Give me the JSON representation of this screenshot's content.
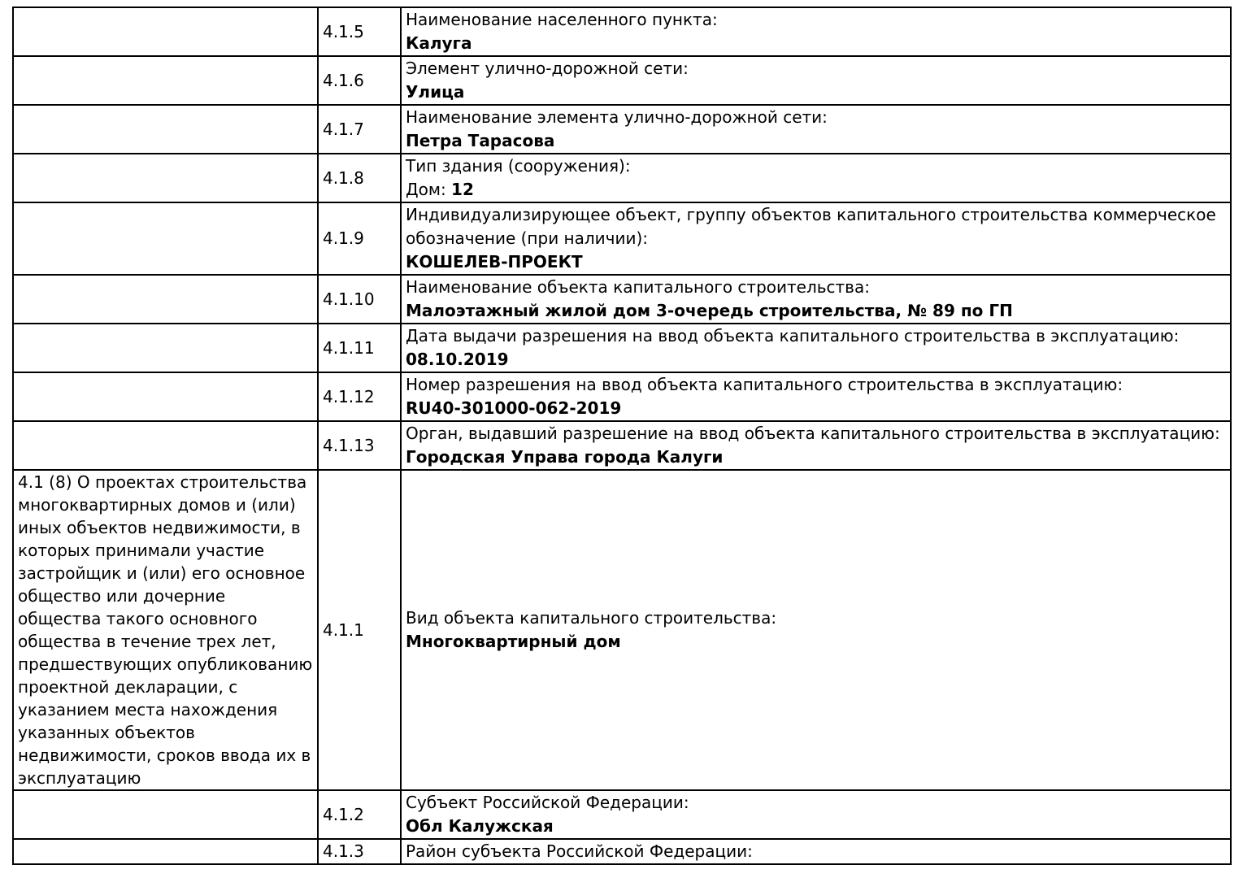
{
  "document": {
    "colors": {
      "text": "#000000",
      "border": "#000000",
      "page_background": "#ffffff"
    },
    "rows": [
      {
        "num": "4.1.5",
        "label": "Наименование населенного пункта:",
        "value": "Калуга"
      },
      {
        "num": "4.1.6",
        "label": "Элемент улично-дорожной сети:",
        "value": "Улица"
      },
      {
        "num": "4.1.7",
        "label": "Наименование элемента улично-дорожной сети:",
        "value": "Петра Тарасова"
      },
      {
        "num": "4.1.8",
        "label": "Тип здания (сооружения):",
        "value_prefix": "Дом: ",
        "value": "12"
      },
      {
        "num": "4.1.9",
        "label": "Индивидуализирующее объект, группу объектов капитального строительства коммерческое обозначение (при наличии):",
        "value": "КОШЕЛЕВ-ПРОЕКТ"
      },
      {
        "num": "4.1.10",
        "label": "Наименование объекта капитального строительства:",
        "value": "Малоэтажный жилой дом 3-очередь строительства, № 89 по ГП"
      },
      {
        "num": "4.1.11",
        "label": "Дата выдачи разрешения на ввод объекта капитального строительства в эксплуатацию:",
        "value": "08.10.2019"
      },
      {
        "num": "4.1.12",
        "label": "Номер разрешения на ввод объекта капитального строительства в эксплуатацию:",
        "value": "RU40-301000-062-2019"
      },
      {
        "num": "4.1.13",
        "label": "Орган, выдавший разрешение на ввод объекта капитального строительства в эксплуатацию:",
        "value": "Городская Управа города Калуги"
      },
      {
        "num": "4.1.1",
        "section": "4.1 (8) О проектах строительства многоквартирных домов и (или) иных объектов недвижимости, в которых принимали участие застройщик и (или) его основное общество или дочерние общества такого основного общества в течение трех лет, предшествующих опубликованию проектной декларации, с указанием места нахождения указанных объектов недвижимости, сроков ввода их в эксплуатацию",
        "label": "Вид объекта капитального строительства:",
        "value": "Многоквартирный дом",
        "tall": true
      },
      {
        "num": "4.1.2",
        "label": "Субъект Российской Федерации:",
        "value": "Обл Калужская"
      },
      {
        "num": "4.1.3",
        "label": "Район субъекта Российской Федерации:",
        "value": ""
      }
    ]
  }
}
